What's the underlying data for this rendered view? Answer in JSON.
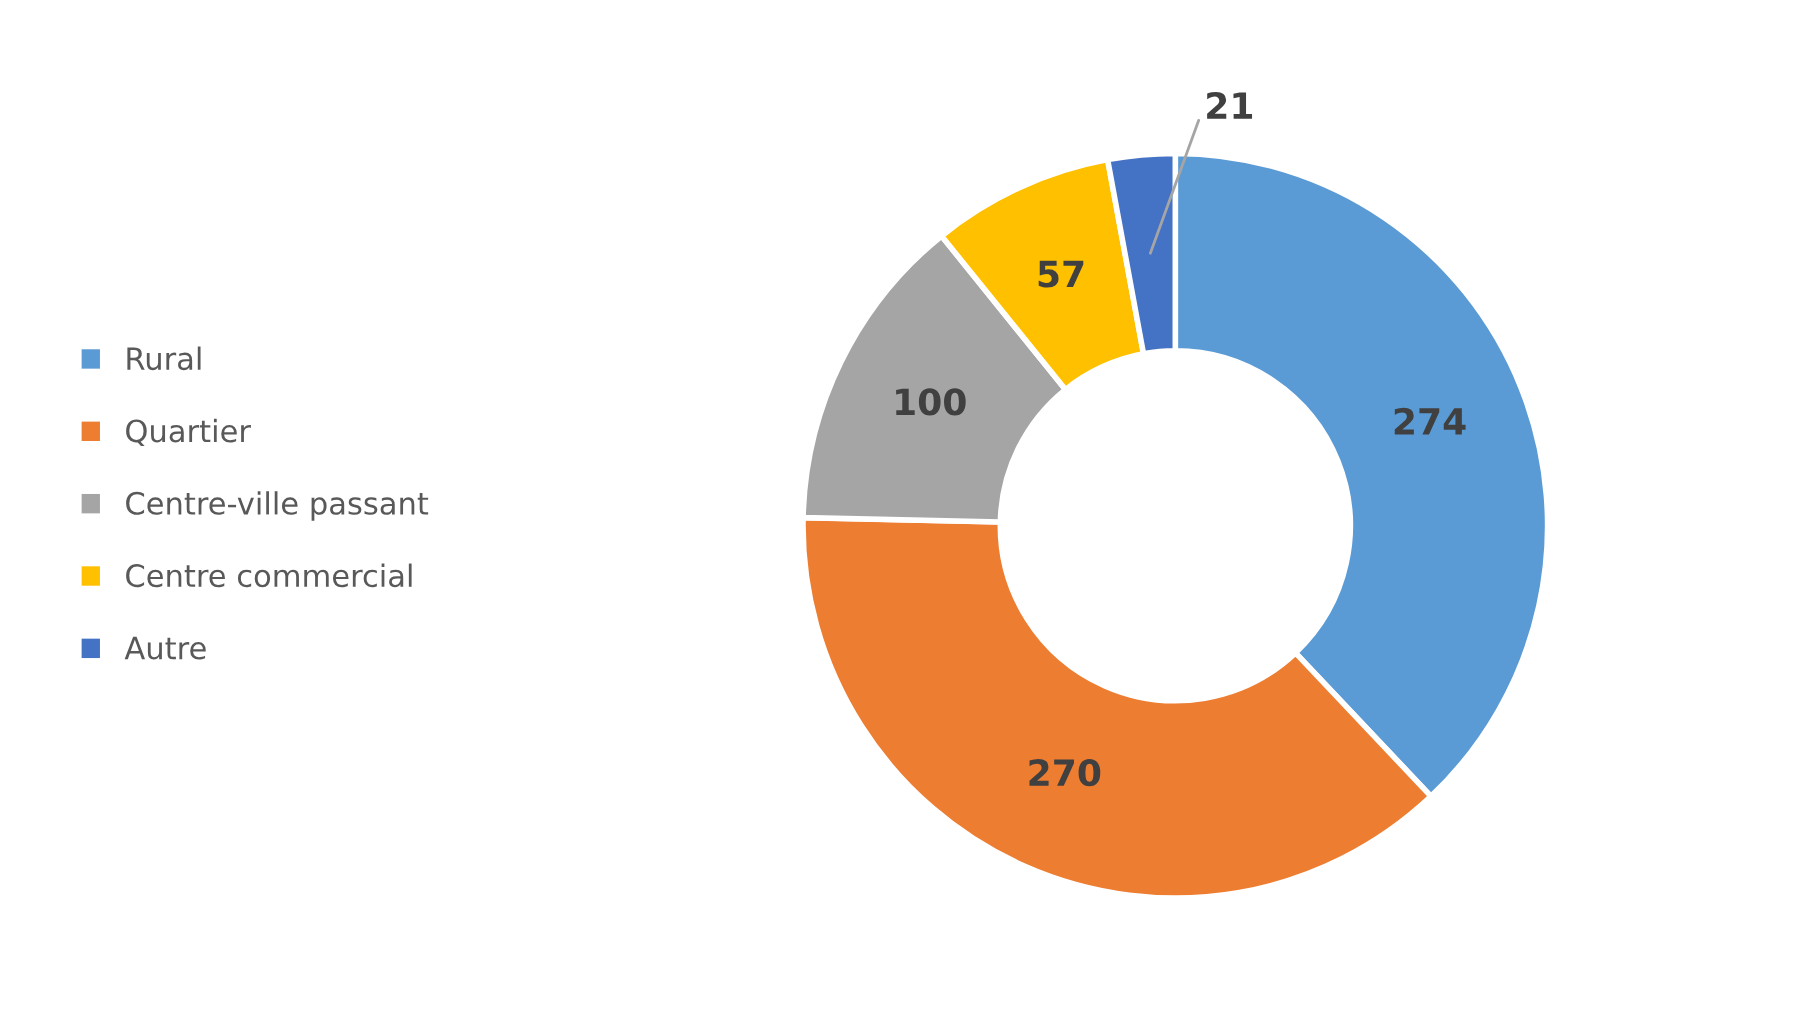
{
  "chart_data": {
    "type": "donut",
    "categories": [
      "Rural",
      "Quartier",
      "Centre-ville passant",
      "Centre commercial",
      "Autre"
    ],
    "values": [
      274,
      270,
      100,
      57,
      21
    ],
    "colors": [
      "#5b9bd5",
      "#ed7d31",
      "#a5a5a5",
      "#ffc000",
      "#4472c4"
    ],
    "data_labels": true,
    "legend": "left"
  }
}
